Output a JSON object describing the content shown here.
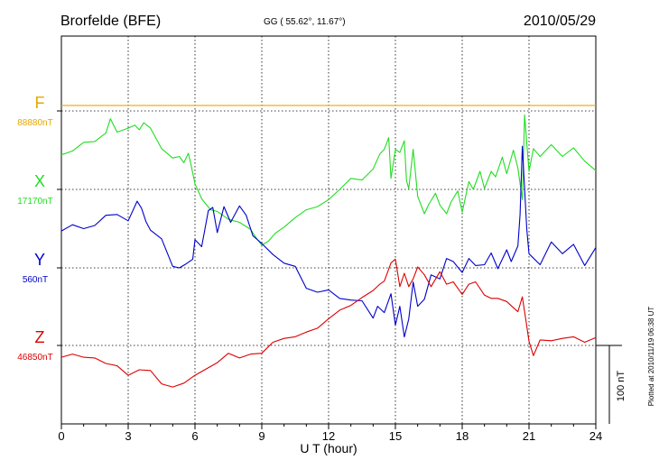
{
  "header": {
    "station": "Brorfelde (BFE)",
    "coords": "GG ( 55.62°,  11.67°)",
    "date": "2010/05/29"
  },
  "footer_note": "Plotted at 2010/11/19 06:38 UT",
  "scale_bar_label": "100 nT",
  "colors": {
    "F": "#e6a800",
    "X": "#22dd22",
    "Y": "#0000cc",
    "Z": "#dd0000",
    "grid": "#000000"
  },
  "chart_data": {
    "type": "line",
    "xlabel": "U T (hour)",
    "xlim": [
      0,
      24
    ],
    "xticks": [
      0,
      3,
      6,
      9,
      12,
      15,
      18,
      21,
      24
    ],
    "xtick_labels": [
      "0",
      "3",
      "6",
      "9",
      "12",
      "15",
      "18",
      "21",
      "24"
    ],
    "scale_bar_nT": 100,
    "series": [
      {
        "name": "F",
        "baseline_label": "88880nT",
        "baseline_nT": 88880,
        "color": "#e6a800",
        "x": [
          0,
          24
        ],
        "offset_nT": [
          7,
          7
        ]
      },
      {
        "name": "X",
        "baseline_label": "17170nT",
        "baseline_nT": 17170,
        "color": "#22dd22",
        "x": [
          0,
          0.5,
          1,
          1.5,
          2,
          2.2,
          2.5,
          3,
          3.3,
          3.5,
          3.7,
          4,
          4.5,
          5,
          5.3,
          5.5,
          5.7,
          5.8,
          6,
          6.3,
          6.7,
          7,
          7.5,
          8,
          8.5,
          8.8,
          9,
          9.3,
          9.6,
          10,
          10.5,
          11,
          11.5,
          12,
          12.5,
          13,
          13.5,
          14,
          14.3,
          14.5,
          14.7,
          14.8,
          15,
          15.2,
          15.4,
          15.5,
          15.6,
          15.8,
          16,
          16.3,
          16.5,
          16.8,
          17,
          17.3,
          17.5,
          17.8,
          18,
          18.3,
          18.5,
          18.8,
          19,
          19.3,
          19.5,
          19.8,
          20,
          20.3,
          20.5,
          20.7,
          20.8,
          21,
          21.2,
          21.5,
          22,
          22.5,
          23,
          23.5,
          24
        ],
        "offset_nT": [
          44,
          49,
          60,
          61,
          72,
          90,
          73,
          78,
          82,
          76,
          85,
          78,
          52,
          40,
          42,
          34,
          46,
          34,
          7,
          -12,
          -26,
          -28,
          -38,
          -42,
          -51,
          -64,
          -71,
          -66,
          -56,
          -48,
          -36,
          -26,
          -22,
          -13,
          0,
          14,
          12,
          26,
          45,
          51,
          66,
          14,
          51,
          47,
          62,
          11,
          1,
          51,
          -9,
          -31,
          -19,
          -5,
          -20,
          -31,
          -16,
          -2,
          -29,
          10,
          0,
          23,
          1,
          23,
          16,
          41,
          20,
          50,
          27,
          -13,
          95,
          23,
          52,
          42,
          57,
          42,
          53,
          36,
          24
        ]
      },
      {
        "name": "Y",
        "baseline_label": "560nT",
        "baseline_nT": 560,
        "color": "#0000cc",
        "x": [
          0,
          0.5,
          1,
          1.5,
          2,
          2.5,
          3,
          3.4,
          3.6,
          3.8,
          4,
          4.5,
          5,
          5.3,
          5.6,
          5.9,
          6,
          6.3,
          6.6,
          6.8,
          7,
          7.3,
          7.6,
          8,
          8.3,
          8.6,
          9,
          9.5,
          10,
          10.5,
          11,
          11.5,
          12,
          12.5,
          13,
          13.5,
          14,
          14.2,
          14.5,
          14.8,
          15,
          15.2,
          15.4,
          15.6,
          15.8,
          16,
          16.3,
          16.6,
          17,
          17.3,
          17.6,
          18,
          18.3,
          18.6,
          19,
          19.3,
          19.6,
          20,
          20.2,
          20.5,
          20.6,
          20.7,
          20.9,
          21,
          21.5,
          22,
          22.5,
          23,
          23.5,
          24
        ],
        "offset_nT": [
          47,
          55,
          50,
          54,
          67,
          68,
          60,
          85,
          76,
          59,
          48,
          37,
          2,
          0,
          5,
          11,
          36,
          27,
          73,
          77,
          45,
          78,
          58,
          79,
          67,
          41,
          31,
          17,
          6,
          2,
          -26,
          -31,
          -28,
          -39,
          -41,
          -42,
          -64,
          -49,
          -57,
          -33,
          -73,
          -49,
          -88,
          -65,
          -18,
          -49,
          -40,
          -9,
          -14,
          12,
          8,
          -6,
          12,
          3,
          4,
          19,
          -1,
          23,
          8,
          28,
          68,
          155,
          50,
          18,
          4,
          33,
          18,
          30,
          3,
          26
        ]
      },
      {
        "name": "Z",
        "baseline_label": "46850nT",
        "baseline_nT": 46850,
        "color": "#dd0000",
        "x": [
          0,
          0.5,
          1,
          1.5,
          2,
          2.5,
          3,
          3.5,
          4,
          4.5,
          5,
          5.5,
          6,
          6.5,
          7,
          7.5,
          8,
          8.5,
          9,
          9.5,
          10,
          10.5,
          11,
          11.5,
          12,
          12.5,
          13,
          13.5,
          14,
          14.3,
          14.5,
          14.8,
          15,
          15.2,
          15.4,
          15.6,
          15.8,
          16,
          16.3,
          16.6,
          17,
          17.3,
          17.6,
          18,
          18.3,
          18.6,
          19,
          19.3,
          19.6,
          20,
          20.3,
          20.5,
          20.7,
          20.9,
          21,
          21.2,
          21.5,
          22,
          22.5,
          23,
          23.5,
          24
        ],
        "offset_nT": [
          -15,
          -11,
          -15,
          -16,
          -23,
          -26,
          -38,
          -31,
          -32,
          -49,
          -53,
          -48,
          -38,
          -30,
          -22,
          -10,
          -16,
          -11,
          -10,
          4,
          9,
          11,
          17,
          22,
          34,
          45,
          51,
          61,
          70,
          78,
          82,
          105,
          110,
          75,
          92,
          75,
          85,
          100,
          90,
          75,
          94,
          78,
          81,
          65,
          78,
          81,
          64,
          60,
          60,
          56,
          48,
          43,
          62,
          25,
          5,
          -13,
          7,
          6,
          9,
          11,
          4,
          10
        ]
      }
    ]
  }
}
